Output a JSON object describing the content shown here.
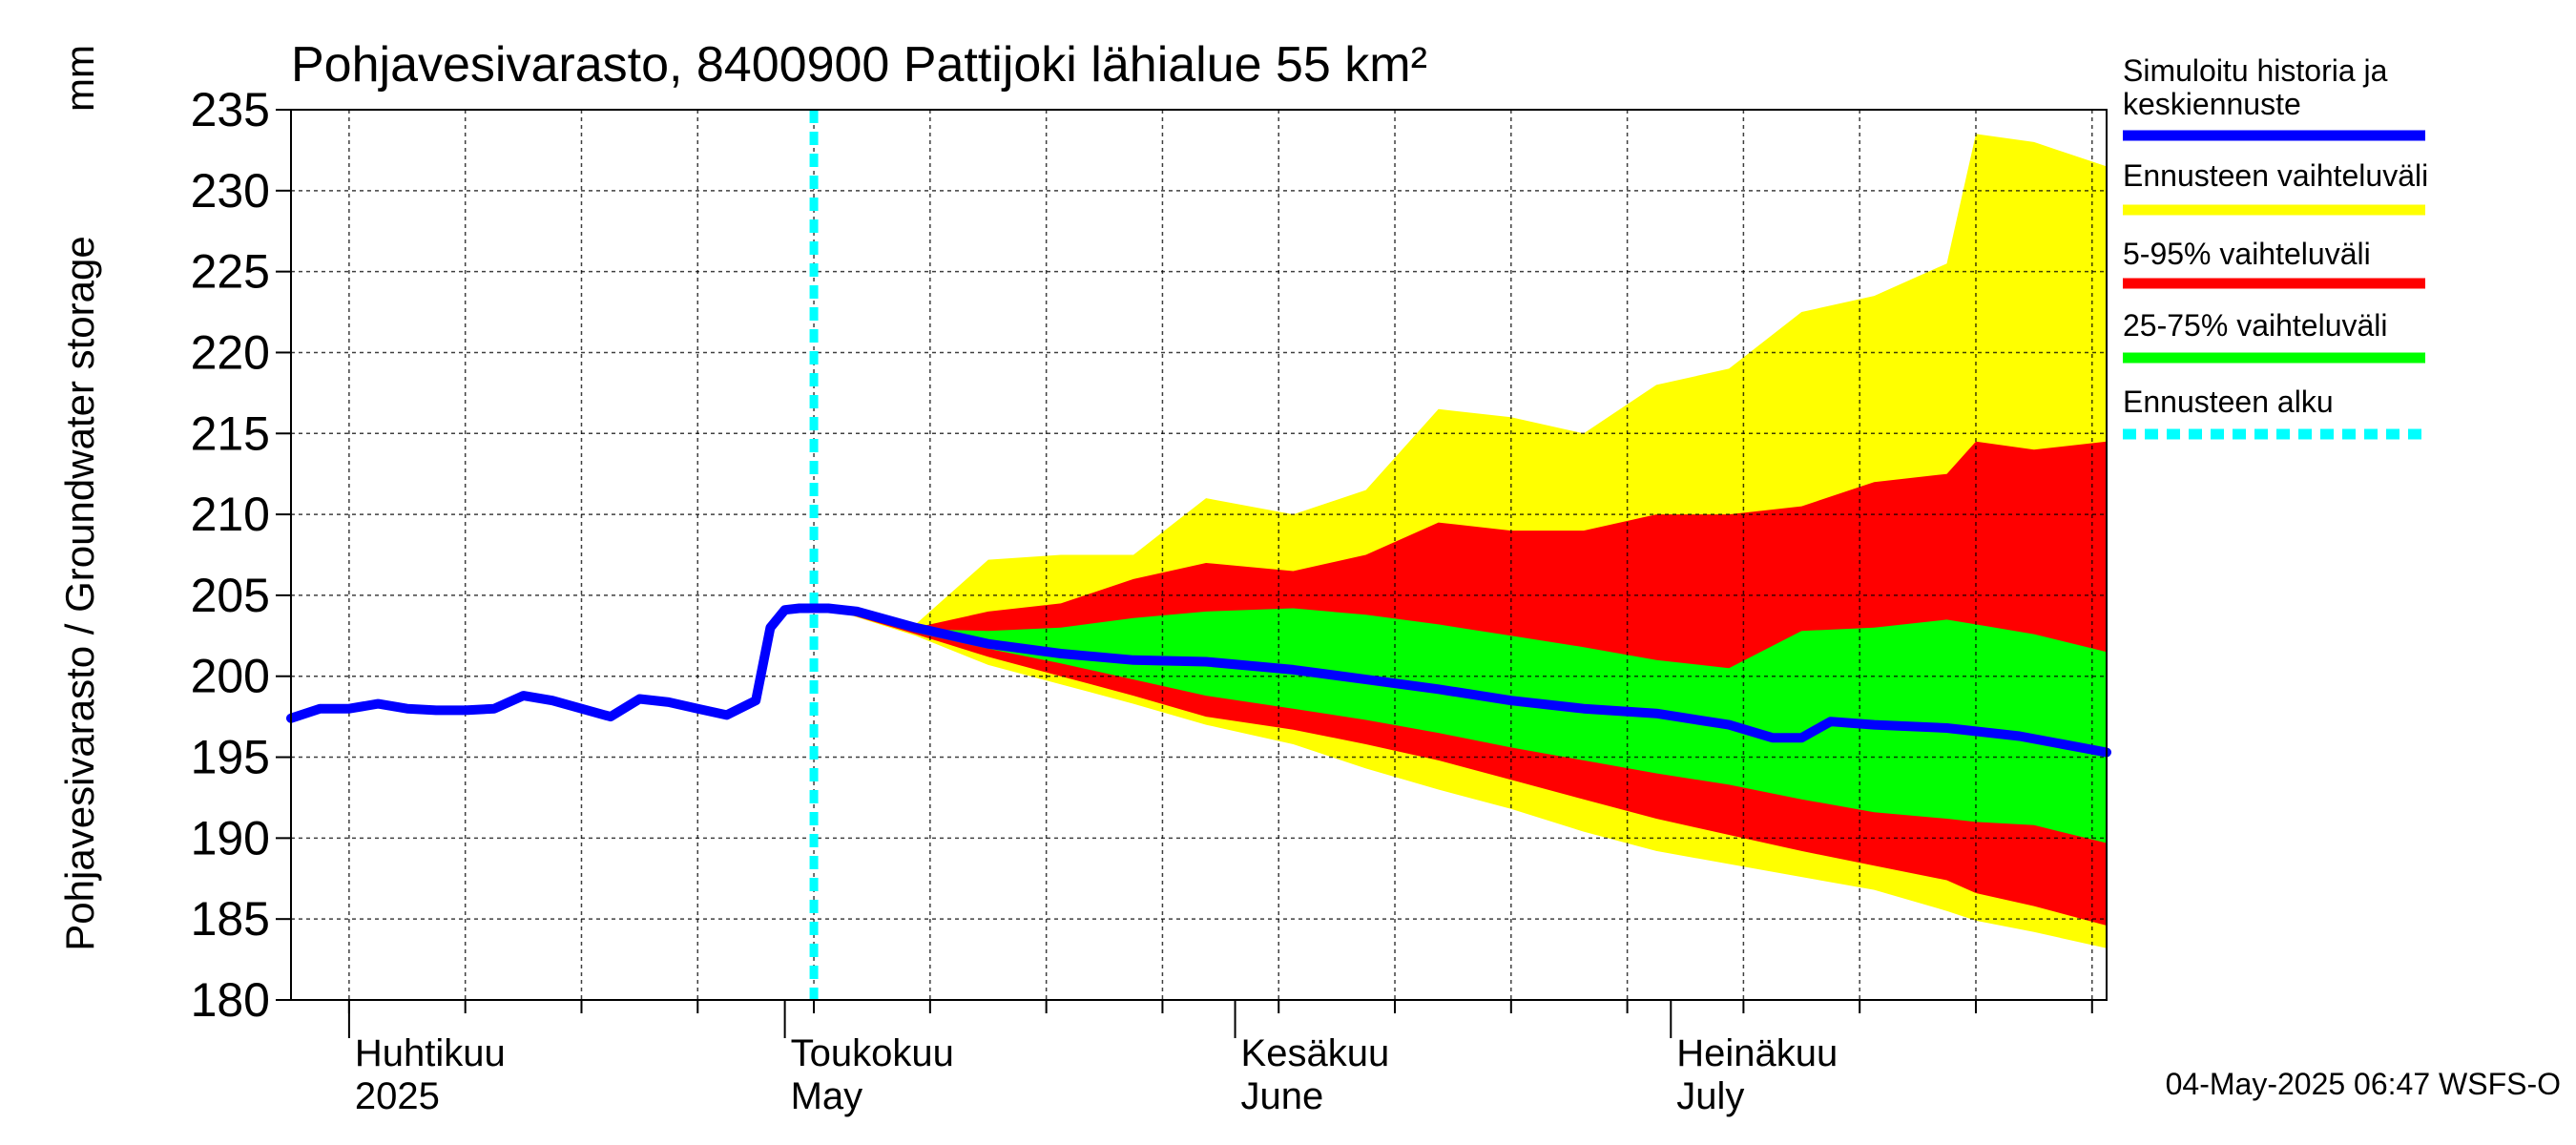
{
  "chart_data": {
    "type": "area",
    "title": "Pohjavesivarasto, 8400900 Pattijoki lähialue 55 km²",
    "ylabel": "Pohjavesivarasto / Groundwater storage",
    "yunit": "mm",
    "ylim": [
      180,
      235
    ],
    "yticks": [
      180,
      185,
      190,
      195,
      200,
      205,
      210,
      215,
      220,
      225,
      230,
      235
    ],
    "xlim": [
      "2025-03-28",
      "2025-07-31"
    ],
    "month_labels": [
      {
        "fi": "Huhtikuu",
        "en": "2025",
        "date": "2025-04-01"
      },
      {
        "fi": "Toukokuu",
        "en": "May",
        "date": "2025-05-01"
      },
      {
        "fi": "Kesäkuu",
        "en": "June",
        "date": "2025-06-01"
      },
      {
        "fi": "Heinäkuu",
        "en": "July",
        "date": "2025-07-01"
      }
    ],
    "grid": true,
    "legend_position": "right",
    "forecast_start": "2025-05-03",
    "timestamp": "04-May-2025 06:47 WSFS-O",
    "series": [
      {
        "name": "Ennusteen vaihteluväli",
        "kind": "band",
        "color": "#ffff00",
        "x": [
          "2025-05-04",
          "2025-05-10",
          "2025-05-15",
          "2025-05-20",
          "2025-05-25",
          "2025-05-30",
          "2025-06-05",
          "2025-06-10",
          "2025-06-15",
          "2025-06-20",
          "2025-06-25",
          "2025-06-30",
          "2025-07-05",
          "2025-07-10",
          "2025-07-15",
          "2025-07-20",
          "2025-07-22",
          "2025-07-26",
          "2025-07-31"
        ],
        "upper": [
          204.2,
          203.2,
          207.2,
          207.5,
          207.5,
          211.0,
          210.0,
          211.5,
          216.5,
          216.0,
          215.0,
          218.0,
          219.0,
          222.5,
          223.5,
          225.5,
          233.5,
          233.0,
          231.5
        ],
        "lower": [
          204.2,
          202.5,
          200.7,
          199.5,
          198.3,
          197.0,
          195.8,
          194.3,
          193.0,
          191.8,
          190.4,
          189.2,
          188.4,
          187.6,
          186.8,
          185.5,
          184.9,
          184.2,
          183.2
        ]
      },
      {
        "name": "5-95% vaihteluväli",
        "kind": "band",
        "color": "#ff0000",
        "x": [
          "2025-05-04",
          "2025-05-10",
          "2025-05-15",
          "2025-05-20",
          "2025-05-25",
          "2025-05-30",
          "2025-06-05",
          "2025-06-10",
          "2025-06-15",
          "2025-06-20",
          "2025-06-25",
          "2025-06-30",
          "2025-07-05",
          "2025-07-10",
          "2025-07-15",
          "2025-07-20",
          "2025-07-22",
          "2025-07-26",
          "2025-07-31"
        ],
        "upper": [
          204.2,
          203.0,
          204.0,
          204.5,
          206.0,
          207.0,
          206.5,
          207.5,
          209.5,
          209.0,
          209.0,
          210.0,
          210.0,
          210.5,
          212.0,
          212.5,
          214.5,
          214.0,
          214.5
        ],
        "lower": [
          204.2,
          202.6,
          201.2,
          200.0,
          198.8,
          197.5,
          196.7,
          195.8,
          194.8,
          193.6,
          192.4,
          191.2,
          190.2,
          189.2,
          188.3,
          187.4,
          186.6,
          185.8,
          184.6
        ]
      },
      {
        "name": "25-75% vaihteluväli",
        "kind": "band",
        "color": "#00ff00",
        "x": [
          "2025-05-04",
          "2025-05-10",
          "2025-05-15",
          "2025-05-20",
          "2025-05-25",
          "2025-05-30",
          "2025-06-05",
          "2025-06-10",
          "2025-06-15",
          "2025-06-20",
          "2025-06-25",
          "2025-06-30",
          "2025-07-05",
          "2025-07-10",
          "2025-07-15",
          "2025-07-20",
          "2025-07-22",
          "2025-07-26",
          "2025-07-31"
        ],
        "upper": [
          204.2,
          202.9,
          202.8,
          203.0,
          203.6,
          204.0,
          204.2,
          203.8,
          203.2,
          202.5,
          201.8,
          201.0,
          200.5,
          202.8,
          203.0,
          203.5,
          203.2,
          202.6,
          201.5
        ],
        "lower": [
          204.2,
          202.7,
          201.7,
          200.8,
          199.8,
          198.8,
          198.0,
          197.3,
          196.5,
          195.6,
          194.8,
          194.0,
          193.3,
          192.4,
          191.6,
          191.2,
          191.0,
          190.8,
          189.7
        ]
      },
      {
        "name": "Simuloitu historia ja keskiennuste",
        "kind": "line",
        "color": "#0000ff",
        "x": [
          "2025-03-28",
          "2025-03-30",
          "2025-04-01",
          "2025-04-03",
          "2025-04-05",
          "2025-04-07",
          "2025-04-09",
          "2025-04-11",
          "2025-04-13",
          "2025-04-15",
          "2025-04-17",
          "2025-04-19",
          "2025-04-21",
          "2025-04-23",
          "2025-04-25",
          "2025-04-27",
          "2025-04-29",
          "2025-04-30",
          "2025-05-01",
          "2025-05-02",
          "2025-05-03",
          "2025-05-04",
          "2025-05-06",
          "2025-05-10",
          "2025-05-15",
          "2025-05-20",
          "2025-05-25",
          "2025-05-30",
          "2025-06-05",
          "2025-06-10",
          "2025-06-15",
          "2025-06-20",
          "2025-06-25",
          "2025-06-30",
          "2025-07-05",
          "2025-07-08",
          "2025-07-10",
          "2025-07-12",
          "2025-07-15",
          "2025-07-20",
          "2025-07-25",
          "2025-07-31"
        ],
        "values": [
          197.4,
          198.0,
          198.0,
          198.3,
          198.0,
          197.9,
          197.9,
          198.0,
          198.8,
          198.5,
          198.0,
          197.5,
          198.6,
          198.4,
          198.0,
          197.6,
          198.5,
          203.0,
          204.1,
          204.2,
          204.2,
          204.2,
          204.0,
          203.0,
          202.0,
          201.4,
          201.0,
          200.9,
          200.4,
          199.8,
          199.2,
          198.5,
          198.0,
          197.7,
          197.0,
          196.2,
          196.2,
          197.2,
          197.0,
          196.8,
          196.3,
          195.3
        ]
      },
      {
        "name": "Ennusteen alku",
        "kind": "vline",
        "color": "#00ffff",
        "x": "2025-05-03"
      }
    ]
  }
}
